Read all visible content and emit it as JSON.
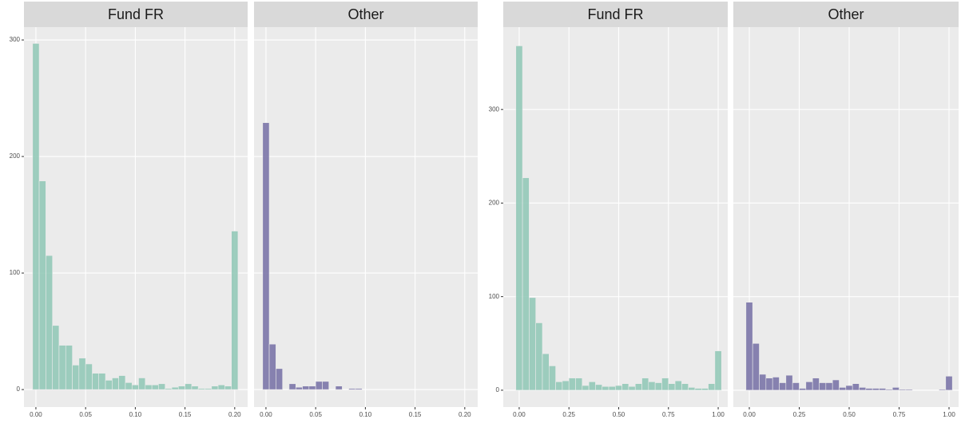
{
  "chart_data": [
    {
      "type": "histogram",
      "bins": [
        -0.0033,
        0.0033,
        0.01,
        0.0167,
        0.0233,
        0.03,
        0.0367,
        0.0433,
        0.05,
        0.0567,
        0.0633,
        0.07,
        0.0767,
        0.0833,
        0.09,
        0.0967,
        0.1033,
        0.11,
        0.1167,
        0.1233,
        0.13,
        0.1367,
        0.1433,
        0.15,
        0.1567,
        0.1633,
        0.17,
        0.1767,
        0.1833,
        0.19,
        0.1967,
        0.2033
      ],
      "facets": [
        {
          "name": "Fund FR",
          "color": "#93c9b8",
          "values": [
            297,
            179,
            115,
            55,
            38,
            38,
            21,
            27,
            22,
            14,
            14,
            8,
            10,
            12,
            6,
            4,
            10,
            4,
            4,
            5,
            1,
            2,
            3,
            5,
            3,
            1,
            1,
            3,
            4,
            3,
            136
          ]
        },
        {
          "name": "Other",
          "color": "#7b76a9",
          "values": [
            229,
            39,
            18,
            0,
            5,
            2,
            3,
            3,
            7,
            7,
            0,
            3,
            0,
            1,
            1,
            0,
            0,
            0,
            0,
            0,
            0,
            0,
            0,
            0,
            0,
            0,
            0,
            0,
            0,
            0,
            0
          ]
        }
      ],
      "xlim": [
        -0.012,
        0.213
      ],
      "xticks": [
        {
          "value": 0,
          "label": "0.00"
        },
        0.05,
        {
          "value": 0.1,
          "label": "0.10"
        },
        0.15,
        {
          "value": 0.2,
          "label": "0.20"
        }
      ],
      "ylim": [
        -15,
        311
      ],
      "yticks": [
        0,
        100,
        200,
        300
      ],
      "grid": true
    },
    {
      "type": "histogram",
      "bins": [
        -0.0167,
        0.0167,
        0.05,
        0.0833,
        0.1167,
        0.15,
        0.1833,
        0.2167,
        0.25,
        0.2833,
        0.3167,
        0.35,
        0.3833,
        0.4167,
        0.45,
        0.4833,
        0.5167,
        0.55,
        0.5833,
        0.6167,
        0.65,
        0.6833,
        0.7167,
        0.75,
        0.7833,
        0.8167,
        0.85,
        0.8833,
        0.9167,
        0.95,
        0.9833,
        1.0167
      ],
      "facets": [
        {
          "name": "Fund FR",
          "color": "#93c9b8",
          "values": [
            368,
            227,
            99,
            72,
            39,
            26,
            9,
            10,
            13,
            13,
            5,
            9,
            6,
            4,
            4,
            5,
            7,
            4,
            7,
            13,
            9,
            8,
            13,
            7,
            10,
            7,
            3,
            2,
            2,
            7,
            42
          ]
        },
        {
          "name": "Other",
          "color": "#7b76a9",
          "values": [
            94,
            50,
            17,
            13,
            14,
            8,
            16,
            8,
            2,
            9,
            13,
            8,
            8,
            11,
            3,
            5,
            7,
            3,
            2,
            2,
            2,
            1,
            3,
            1,
            1,
            0,
            0,
            0,
            0,
            1,
            15
          ]
        }
      ],
      "xlim": [
        -0.08,
        1.048
      ],
      "xticks": [
        {
          "value": 0,
          "label": "0.00"
        },
        0.25,
        {
          "value": 0.5,
          "label": "0.50"
        },
        0.75,
        {
          "value": 1,
          "label": "1.00"
        }
      ],
      "ylim": [
        -18,
        388
      ],
      "yticks": [
        0,
        100,
        200,
        300
      ],
      "grid": true
    }
  ]
}
